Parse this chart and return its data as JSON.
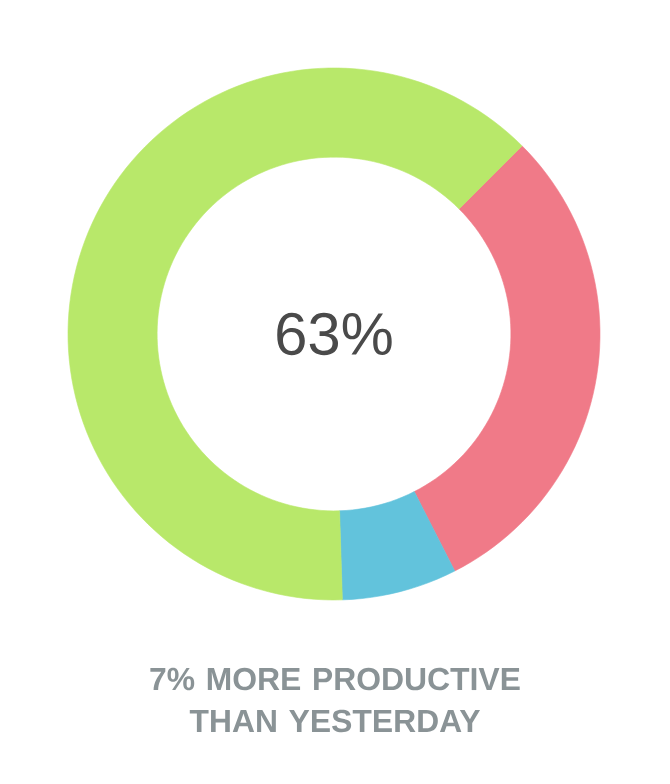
{
  "chart_data": {
    "type": "donut",
    "categories": [
      null,
      null,
      null
    ],
    "values": [
      30,
      7,
      63
    ],
    "colors": [
      "#f07a88",
      "#62c3dc",
      "#b8e86a"
    ],
    "annotations": [
      "63%",
      "7% MORE PRODUCTIVE THAN YESTERDAY"
    ]
  }
}
